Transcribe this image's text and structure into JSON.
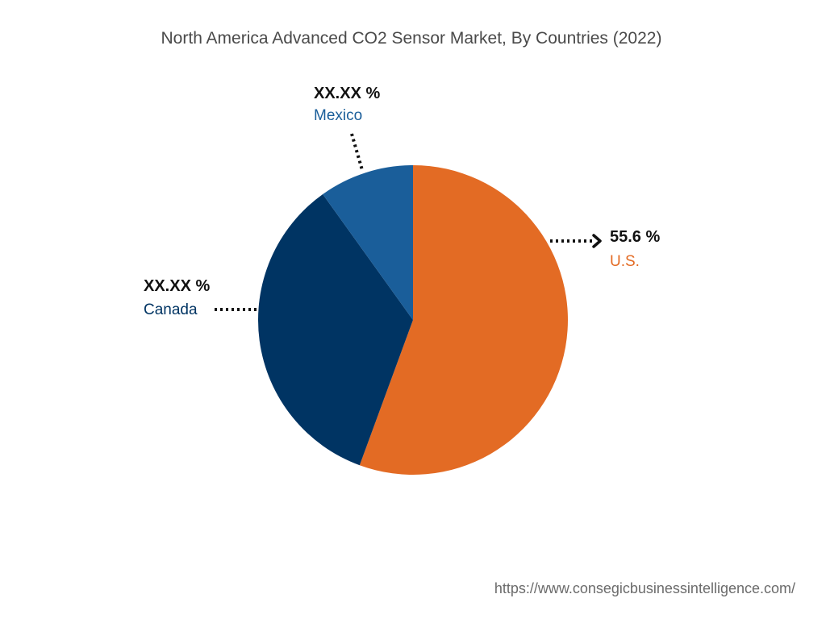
{
  "title": "North America Advanced CO2 Sensor Market, By Countries (2022)",
  "source_url": "https://www.consegicbusinessintelligence.com/",
  "chart_data": {
    "type": "pie",
    "title": "North America Advanced CO2 Sensor Market, By Countries (2022)",
    "slices": [
      {
        "name": "U.S.",
        "value": 55.6,
        "label": "55.6 %",
        "color": "#E36B24"
      },
      {
        "name": "Canada",
        "value": 34.5,
        "label": "XX.XX %",
        "color": "#003463"
      },
      {
        "name": "Mexico",
        "value": 9.9,
        "label": "XX.XX %",
        "color": "#1A5E9A"
      }
    ],
    "start_angle_deg": 0,
    "direction": "clockwise"
  }
}
